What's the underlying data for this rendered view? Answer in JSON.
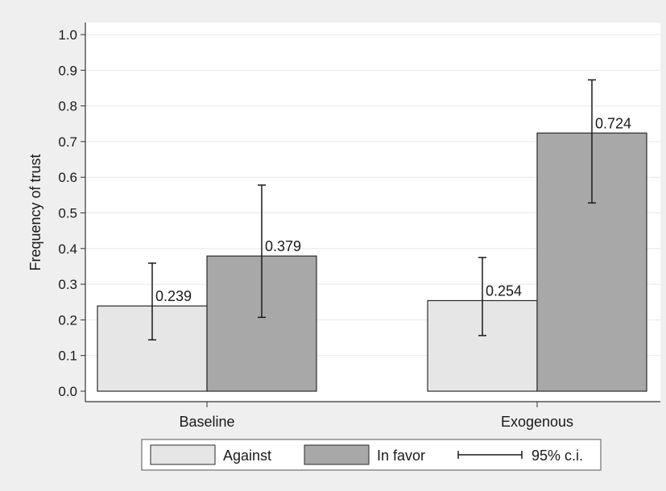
{
  "chart_data": {
    "type": "bar",
    "title": "",
    "xlabel": "",
    "ylabel": "Frequency of trust",
    "ylim": [
      0,
      1.0
    ],
    "yticks": [
      0.0,
      0.1,
      0.2,
      0.3,
      0.4,
      0.5,
      0.6,
      0.7,
      0.8,
      0.9,
      1.0
    ],
    "ytick_labels": [
      "0.0",
      "0.1",
      "0.2",
      "0.3",
      "0.4",
      "0.5",
      "0.6",
      "0.7",
      "0.8",
      "0.9",
      "1.0"
    ],
    "categories": [
      "Baseline",
      "Exogenous"
    ],
    "series": [
      {
        "name": "Against",
        "color": "#e6e6e6",
        "values": [
          0.239,
          0.254
        ],
        "value_labels": [
          "0.239",
          "0.254"
        ],
        "ci_low": [
          0.144,
          0.156
        ],
        "ci_high": [
          0.359,
          0.375
        ]
      },
      {
        "name": "In favor",
        "color": "#a8a8a8",
        "values": [
          0.379,
          0.724
        ],
        "value_labels": [
          "0.379",
          "0.724"
        ],
        "ci_low": [
          0.207,
          0.528
        ],
        "ci_high": [
          0.578,
          0.873
        ]
      }
    ],
    "errorbar_label": "95% c.i.",
    "grid": true,
    "legend_position": "bottom"
  }
}
